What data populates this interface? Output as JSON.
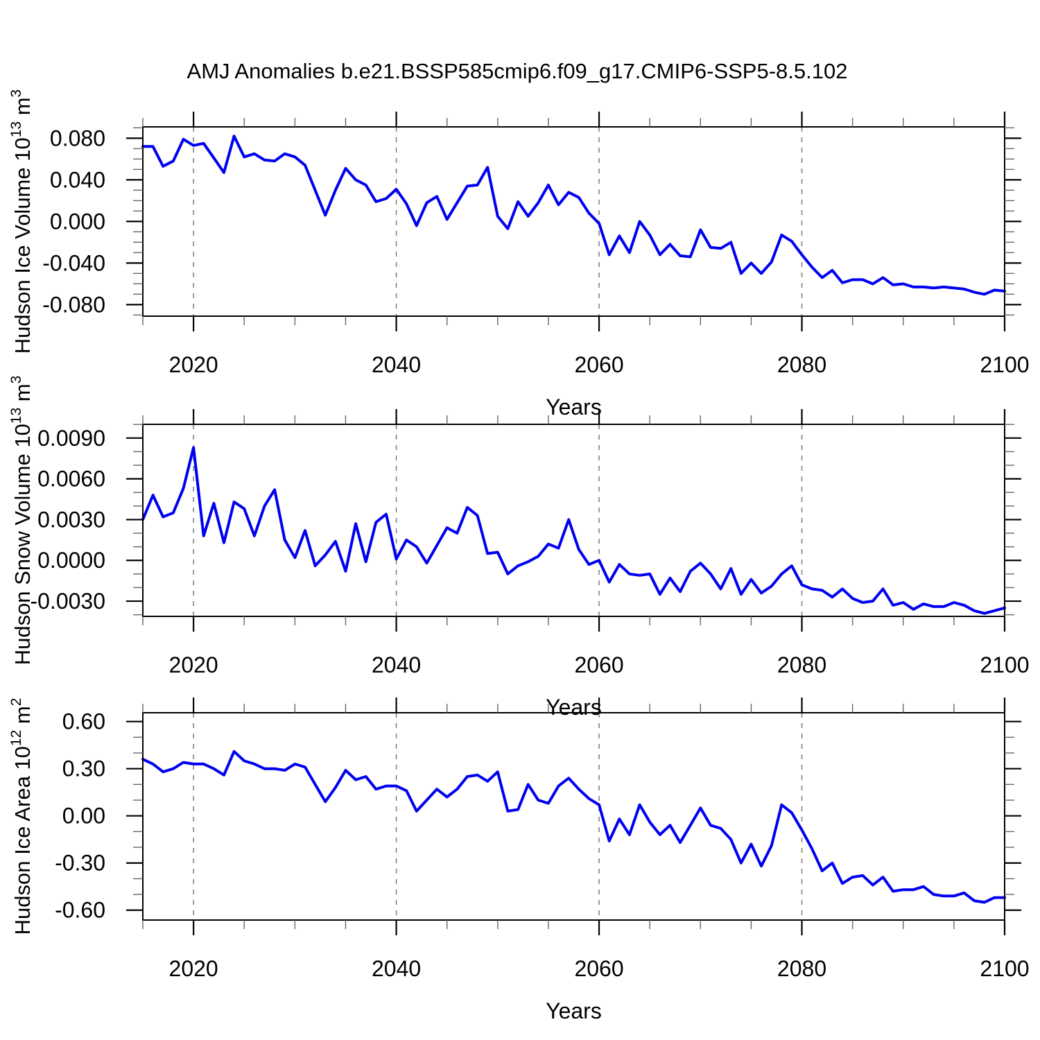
{
  "figure": {
    "title": "AMJ Anomalies b.e21.BSSP585cmip6.f09_g17.CMIP6-SSP5-8.5.102",
    "background": "#ffffff",
    "line_color": "#0000f0",
    "frame_color": "#000000",
    "grid_color": "#7a7a7a",
    "xlabel": "Years"
  },
  "chart_data": [
    {
      "type": "line",
      "name": "hudson-ice-volume",
      "ylabel_text": "Hudson Ice Volume 10¹³ m³",
      "ylabel_parts": [
        {
          "text": "Hudson Ice Volume 10",
          "sup": false
        },
        {
          "text": "13",
          "sup": true
        },
        {
          "text": " m",
          "sup": false
        },
        {
          "text": "3",
          "sup": true
        }
      ],
      "xlabel": "Years",
      "x_start": 2015,
      "x_end": 2100,
      "x_major_ticks": [
        2020,
        2040,
        2060,
        2080,
        2100
      ],
      "x_minor_step": 5,
      "x_gridlines": [
        2020,
        2040,
        2060,
        2080
      ],
      "ylim": [
        -0.0911,
        0.0909
      ],
      "y_minor_step": 0.01,
      "y_major_ticks": [
        {
          "v": 0.08,
          "label": "0.080"
        },
        {
          "v": 0.04,
          "label": "0.040"
        },
        {
          "v": 0.0,
          "label": "0.000"
        },
        {
          "v": -0.04,
          "label": "-0.040"
        },
        {
          "v": -0.08,
          "label": "-0.080"
        }
      ],
      "series": [
        {
          "name": "AMJ ice volume anomaly",
          "values": [
            0.072,
            0.072,
            0.053,
            0.058,
            0.079,
            0.073,
            0.075,
            0.061,
            0.047,
            0.082,
            0.062,
            0.065,
            0.059,
            0.058,
            0.065,
            0.062,
            0.054,
            0.03,
            0.006,
            0.03,
            0.051,
            0.04,
            0.035,
            0.019,
            0.022,
            0.031,
            0.017,
            -0.004,
            0.018,
            0.024,
            0.002,
            0.018,
            0.034,
            0.035,
            0.052,
            0.005,
            -0.007,
            0.019,
            0.005,
            0.018,
            0.035,
            0.016,
            0.028,
            0.023,
            0.008,
            -0.002,
            -0.032,
            -0.014,
            -0.03,
            0.0,
            -0.013,
            -0.032,
            -0.022,
            -0.033,
            -0.034,
            -0.008,
            -0.025,
            -0.026,
            -0.02,
            -0.05,
            -0.04,
            -0.05,
            -0.039,
            -0.013,
            -0.019,
            -0.032,
            -0.044,
            -0.054,
            -0.047,
            -0.059,
            -0.056,
            -0.056,
            -0.06,
            -0.054,
            -0.061,
            -0.06,
            -0.063,
            -0.063,
            -0.064,
            -0.063,
            -0.064,
            -0.065,
            -0.068,
            -0.07,
            -0.066,
            -0.067
          ]
        }
      ]
    },
    {
      "type": "line",
      "name": "hudson-snow-volume",
      "ylabel_text": "Hudson Snow Volume 10¹³ m³",
      "ylabel_parts": [
        {
          "text": "Hudson Snow Volume 10",
          "sup": false
        },
        {
          "text": "13",
          "sup": true
        },
        {
          "text": " m",
          "sup": false
        },
        {
          "text": "3",
          "sup": true
        }
      ],
      "xlabel": "Years",
      "x_start": 2015,
      "x_end": 2100,
      "x_major_ticks": [
        2020,
        2040,
        2060,
        2080,
        2100
      ],
      "x_minor_step": 5,
      "x_gridlines": [
        2020,
        2040,
        2060,
        2080
      ],
      "ylim": [
        -0.00412,
        0.01001
      ],
      "y_minor_step": 0.001,
      "y_major_ticks": [
        {
          "v": 0.009,
          "label": "0.0090"
        },
        {
          "v": 0.006,
          "label": "0.0060"
        },
        {
          "v": 0.003,
          "label": "0.0030"
        },
        {
          "v": 0.0,
          "label": "0.0000"
        },
        {
          "v": -0.003,
          "label": "-0.0030"
        }
      ],
      "series": [
        {
          "name": "AMJ snow volume anomaly",
          "values": [
            0.003,
            0.0048,
            0.0032,
            0.0035,
            0.0053,
            0.0083,
            0.0018,
            0.0042,
            0.0013,
            0.0043,
            0.0038,
            0.0018,
            0.004,
            0.0052,
            0.0015,
            0.0002,
            0.0022,
            -0.0004,
            0.0004,
            0.0014,
            -0.0008,
            0.0027,
            -0.0001,
            0.0028,
            0.0034,
            0.0001,
            0.0015,
            0.001,
            -0.0002,
            0.0011,
            0.0024,
            0.002,
            0.0039,
            0.0033,
            0.0005,
            0.0006,
            -0.001,
            -0.0004,
            -0.0001,
            0.0003,
            0.0012,
            0.0009,
            0.003,
            0.0008,
            -0.0003,
            0.0,
            -0.0016,
            -0.0003,
            -0.001,
            -0.0011,
            -0.001,
            -0.0025,
            -0.0013,
            -0.0023,
            -0.0008,
            -0.0002,
            -0.001,
            -0.0021,
            -0.0006,
            -0.0025,
            -0.0014,
            -0.0024,
            -0.0019,
            -0.001,
            -0.0004,
            -0.0018,
            -0.0021,
            -0.0022,
            -0.0027,
            -0.0021,
            -0.0028,
            -0.0031,
            -0.003,
            -0.0021,
            -0.0033,
            -0.0031,
            -0.0036,
            -0.0032,
            -0.0034,
            -0.0034,
            -0.0031,
            -0.0033,
            -0.0037,
            -0.0039,
            -0.0037,
            -0.0035
          ]
        }
      ]
    },
    {
      "type": "line",
      "name": "hudson-ice-area",
      "ylabel_text": "Hudson Ice Area 10¹² m²",
      "ylabel_parts": [
        {
          "text": "Hudson Ice Area 10",
          "sup": false
        },
        {
          "text": "12",
          "sup": true
        },
        {
          "text": " m",
          "sup": false
        },
        {
          "text": "2",
          "sup": true
        }
      ],
      "xlabel": "Years",
      "x_start": 2015,
      "x_end": 2100,
      "x_major_ticks": [
        2020,
        2040,
        2060,
        2080,
        2100
      ],
      "x_minor_step": 5,
      "x_gridlines": [
        2020,
        2040,
        2060,
        2080
      ],
      "ylim": [
        -0.663,
        0.656
      ],
      "y_minor_step": 0.1,
      "y_major_ticks": [
        {
          "v": 0.6,
          "label": "0.60"
        },
        {
          "v": 0.3,
          "label": "0.30"
        },
        {
          "v": 0.0,
          "label": "0.00"
        },
        {
          "v": -0.3,
          "label": "-0.30"
        },
        {
          "v": -0.6,
          "label": "-0.60"
        }
      ],
      "series": [
        {
          "name": "AMJ ice area anomaly",
          "values": [
            0.36,
            0.33,
            0.28,
            0.3,
            0.34,
            0.33,
            0.33,
            0.3,
            0.26,
            0.41,
            0.35,
            0.33,
            0.3,
            0.3,
            0.29,
            0.33,
            0.31,
            0.2,
            0.09,
            0.18,
            0.29,
            0.23,
            0.25,
            0.17,
            0.19,
            0.19,
            0.16,
            0.03,
            0.1,
            0.17,
            0.12,
            0.17,
            0.25,
            0.26,
            0.22,
            0.28,
            0.03,
            0.04,
            0.2,
            0.1,
            0.08,
            0.19,
            0.24,
            0.17,
            0.11,
            0.07,
            -0.16,
            -0.02,
            -0.12,
            0.07,
            -0.04,
            -0.12,
            -0.06,
            -0.17,
            -0.06,
            0.05,
            -0.06,
            -0.08,
            -0.15,
            -0.3,
            -0.18,
            -0.32,
            -0.19,
            0.07,
            0.02,
            -0.09,
            -0.21,
            -0.35,
            -0.3,
            -0.43,
            -0.39,
            -0.38,
            -0.44,
            -0.39,
            -0.48,
            -0.47,
            -0.47,
            -0.45,
            -0.5,
            -0.51,
            -0.51,
            -0.49,
            -0.54,
            -0.55,
            -0.52,
            -0.52
          ]
        }
      ]
    }
  ]
}
